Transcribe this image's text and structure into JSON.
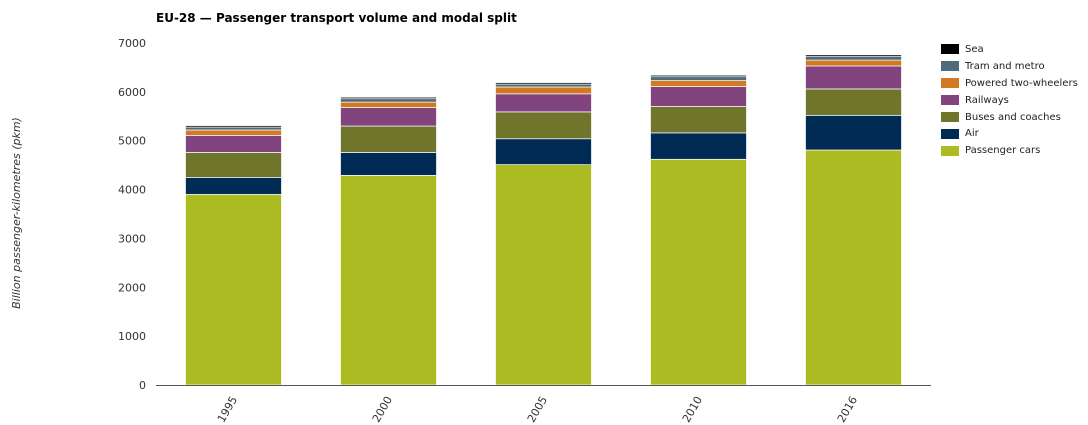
{
  "chart_data": {
    "type": "bar",
    "stacked": true,
    "title": "EU-28 — Passenger transport volume and modal split",
    "xlabel": "",
    "ylabel": "Billion passenger-kilometres (pkm)",
    "ylim": [
      0,
      7000
    ],
    "yticks": [
      0,
      1000,
      2000,
      3000,
      4000,
      5000,
      6000,
      7000
    ],
    "categories": [
      "1995",
      "2000",
      "2005",
      "2010",
      "2016"
    ],
    "legend_position": "right",
    "grid": false,
    "series": [
      {
        "name": "Passenger cars",
        "color": "#adbb22",
        "values": [
          3900,
          4290,
          4510,
          4620,
          4810
        ]
      },
      {
        "name": "Air",
        "color": "#002b55",
        "values": [
          350,
          470,
          530,
          540,
          710
        ]
      },
      {
        "name": "Buses and coaches",
        "color": "#6f752b",
        "values": [
          510,
          540,
          550,
          540,
          540
        ]
      },
      {
        "name": "Railways",
        "color": "#82447e",
        "values": [
          350,
          380,
          370,
          410,
          470
        ]
      },
      {
        "name": "Powered two-wheelers",
        "color": "#d17a22",
        "values": [
          110,
          110,
          140,
          120,
          120
        ]
      },
      {
        "name": "Tram and metro",
        "color": "#4f6b7a",
        "values": [
          60,
          70,
          60,
          80,
          80
        ]
      },
      {
        "name": "Sea",
        "color": "#000000",
        "values": [
          30,
          30,
          30,
          30,
          30
        ]
      }
    ]
  }
}
